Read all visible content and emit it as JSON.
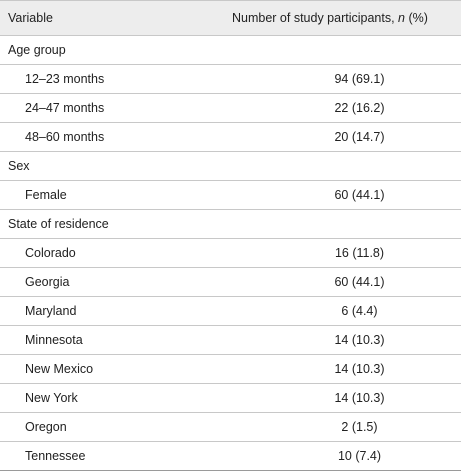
{
  "header": {
    "variable": "Variable",
    "count_prefix": "Number of study participants, ",
    "count_n": "n",
    "count_suffix": " (%)"
  },
  "rows": [
    {
      "type": "group",
      "label": "Age group",
      "value": ""
    },
    {
      "type": "sub",
      "label": "12–23 months",
      "value": "94 (69.1)"
    },
    {
      "type": "sub",
      "label": "24–47 months",
      "value": "22 (16.2)"
    },
    {
      "type": "sub",
      "label": "48–60 months",
      "value": "20 (14.7)"
    },
    {
      "type": "group",
      "label": "Sex",
      "value": ""
    },
    {
      "type": "sub",
      "label": "Female",
      "value": "60 (44.1)"
    },
    {
      "type": "group",
      "label": "State of residence",
      "value": ""
    },
    {
      "type": "sub",
      "label": "Colorado",
      "value": "16 (11.8)"
    },
    {
      "type": "sub",
      "label": "Georgia",
      "value": "60 (44.1)"
    },
    {
      "type": "sub",
      "label": "Maryland",
      "value": "6 (4.4)"
    },
    {
      "type": "sub",
      "label": "Minnesota",
      "value": "14 (10.3)"
    },
    {
      "type": "sub",
      "label": "New Mexico",
      "value": "14 (10.3)"
    },
    {
      "type": "sub",
      "label": "New York",
      "value": "14 (10.3)"
    },
    {
      "type": "sub",
      "label": "Oregon",
      "value": "2 (1.5)"
    },
    {
      "type": "sub",
      "label": "Tennessee",
      "value": "10 (7.4)"
    }
  ]
}
